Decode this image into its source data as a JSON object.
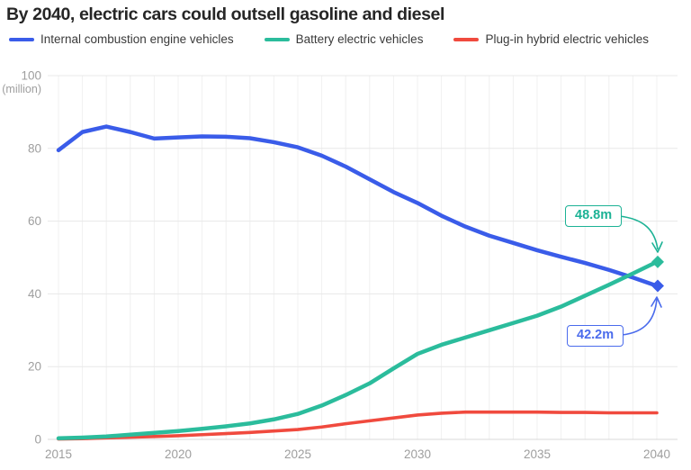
{
  "title": "By 2040, electric cars could outsell gasoline and diesel",
  "legend": [
    {
      "label": "Internal combustion engine vehicles",
      "color": "#3a5ce9"
    },
    {
      "label": "Battery electric vehicles",
      "color": "#2bbc9c"
    },
    {
      "label": "Plug-in hybrid electric vehicles",
      "color": "#f04a3e"
    }
  ],
  "annotations": [
    {
      "label": "48.8m",
      "color": "#1cb295",
      "series": "Battery electric vehicles"
    },
    {
      "label": "42.2m",
      "color": "#4a6bec",
      "series": "Internal combustion engine vehicles"
    }
  ],
  "chart_data": {
    "type": "line",
    "title": "By 2040, electric cars could outsell gasoline and diesel",
    "xlabel": "",
    "ylabel": "(million)",
    "x": [
      2015,
      2016,
      2017,
      2018,
      2019,
      2020,
      2021,
      2022,
      2023,
      2024,
      2025,
      2026,
      2027,
      2028,
      2029,
      2030,
      2031,
      2032,
      2033,
      2034,
      2035,
      2036,
      2037,
      2038,
      2039,
      2040
    ],
    "x_ticks": [
      2015,
      2020,
      2025,
      2030,
      2035,
      2040
    ],
    "y_ticks": [
      0,
      20,
      40,
      60,
      80,
      100
    ],
    "ylim": [
      0,
      100
    ],
    "grid": "on",
    "legend_position": "top",
    "series": [
      {
        "name": "Internal combustion engine vehicles",
        "color": "#3a5ce9",
        "width": 4.5,
        "end_marker": "diamond",
        "end_label": "42.2m",
        "values": [
          79.5,
          84.5,
          86,
          84.5,
          82.7,
          83,
          83.3,
          83.2,
          82.8,
          81.7,
          80.3,
          78,
          75,
          71.5,
          68,
          65,
          61.5,
          58.5,
          56,
          54,
          52,
          50.2,
          48.5,
          46.6,
          44.5,
          42.2
        ]
      },
      {
        "name": "Battery electric vehicles",
        "color": "#2bbc9c",
        "width": 4.5,
        "end_marker": "diamond",
        "end_label": "48.8m",
        "values": [
          0.3,
          0.5,
          0.8,
          1.3,
          1.8,
          2.3,
          2.9,
          3.6,
          4.4,
          5.5,
          7.0,
          9.3,
          12.2,
          15.4,
          19.5,
          23.5,
          26,
          28,
          30,
          32,
          34,
          36.5,
          39.5,
          42.5,
          45.6,
          48.8
        ]
      },
      {
        "name": "Plug-in hybrid electric vehicles",
        "color": "#f04a3e",
        "width": 3.6,
        "end_marker": "none",
        "end_label": "",
        "values": [
          0.1,
          0.2,
          0.4,
          0.6,
          0.8,
          1.0,
          1.3,
          1.6,
          1.9,
          2.3,
          2.7,
          3.4,
          4.3,
          5.1,
          5.9,
          6.7,
          7.2,
          7.5,
          7.5,
          7.5,
          7.5,
          7.4,
          7.4,
          7.3,
          7.3,
          7.3
        ]
      }
    ]
  }
}
